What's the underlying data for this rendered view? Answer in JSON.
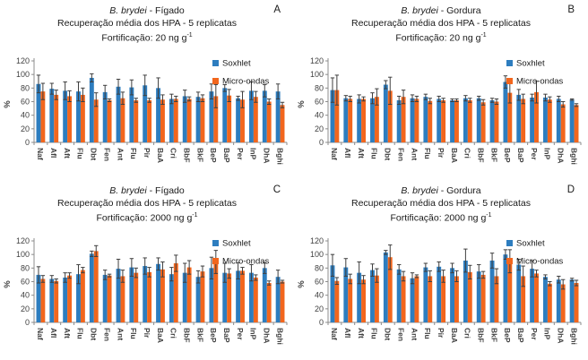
{
  "figure": {
    "colors": {
      "soxhlet": "#2d7dbf",
      "micro_ondas": "#f2661d",
      "error_bar": "#3f3f3f",
      "axis": "#8c8c8c",
      "tick_text": "#404040"
    }
  },
  "chart_data": [
    {
      "type": "bar",
      "panel_letter": "A",
      "title_italic": "B. brydei",
      "title_rest": " - Fígado",
      "subtitle": "Recuperação média dos HPA - 5 replicatas",
      "fortification_text": "Fortificação: 20 ng g",
      "fortification_sup": "-1",
      "ylabel": "%",
      "ylim": [
        0,
        120
      ],
      "yticks": [
        0,
        20,
        40,
        60,
        80,
        100,
        120
      ],
      "grid": false,
      "legend_position": "top-right-inside",
      "categories": [
        "Naf",
        "Afl",
        "Aft",
        "Flu",
        "Dbt",
        "Fen",
        "Ant",
        "Flu",
        "Pir",
        "BaA",
        "Cri",
        "BbF",
        "BkF",
        "BeP",
        "BaP",
        "Per",
        "InP",
        "DhA",
        "Bghi"
      ],
      "series": [
        {
          "name": "Soxhlet",
          "color_key": "soxhlet",
          "values": [
            86,
            79,
            76,
            75,
            95,
            74,
            82,
            81,
            84,
            80,
            64,
            68,
            67,
            75,
            80,
            65,
            76,
            76,
            75
          ],
          "errors": [
            13,
            8,
            13,
            14,
            6,
            10,
            11,
            11,
            15,
            15,
            7,
            9,
            7,
            11,
            5,
            3,
            13,
            9,
            11
          ]
        },
        {
          "name": "Micro-ondas",
          "color_key": "micro_ondas",
          "values": [
            75,
            70,
            68,
            70,
            63,
            62,
            65,
            62,
            62,
            63,
            64,
            64,
            65,
            68,
            69,
            63,
            67,
            60,
            55
          ],
          "errors": [
            12,
            7,
            8,
            10,
            10,
            2,
            9,
            3,
            3,
            7,
            4,
            3,
            5,
            17,
            9,
            12,
            8,
            4,
            4
          ]
        }
      ]
    },
    {
      "type": "bar",
      "panel_letter": "B",
      "title_italic": "B. brydei",
      "title_rest": " - Gordura",
      "subtitle": "Recuperação média dos HPA - 5 replicatas",
      "fortification_text": "Fortificação: 20 ng g",
      "fortification_sup": "-1",
      "ylabel": "%",
      "ylim": [
        0,
        120
      ],
      "yticks": [
        0,
        20,
        40,
        60,
        80,
        100,
        120
      ],
      "grid": false,
      "legend_position": "top-right-inside",
      "categories": [
        "Naf",
        "Afl",
        "Aft",
        "Flu",
        "Dbt",
        "Fen",
        "Ant",
        "Flu",
        "Pir",
        "BaA",
        "Cri",
        "BbF",
        "BkF",
        "BeP",
        "BaP",
        "Per",
        "InP",
        "DhA",
        "Bghi"
      ],
      "series": [
        {
          "name": "Soxhlet",
          "color_key": "soxhlet",
          "values": [
            77,
            65,
            64,
            65,
            85,
            62,
            65,
            67,
            64,
            62,
            65,
            65,
            62,
            89,
            70,
            66,
            66,
            64,
            63
          ],
          "errors": [
            18,
            4,
            6,
            8,
            6,
            6,
            5,
            4,
            4,
            2,
            4,
            3,
            3,
            9,
            8,
            5,
            5,
            4,
            1
          ]
        },
        {
          "name": "Micro-ondas",
          "color_key": "micro_ondas",
          "values": [
            77,
            64,
            64,
            67,
            76,
            67,
            64,
            61,
            62,
            62,
            62,
            59,
            60,
            73,
            64,
            74,
            63,
            56,
            55
          ],
          "errors": [
            22,
            4,
            3,
            12,
            20,
            10,
            4,
            4,
            3,
            2,
            3,
            4,
            4,
            15,
            7,
            16,
            4,
            4,
            2
          ]
        }
      ]
    },
    {
      "type": "bar",
      "panel_letter": "C",
      "title_italic": "B. brydei",
      "title_rest": " - Fígado",
      "subtitle": "Recuperação média dos HPA - 5 replicatas",
      "fortification_text": "Fortificação: 2000 ng g",
      "fortification_sup": "-1",
      "ylabel": "%",
      "ylim": [
        0,
        120
      ],
      "yticks": [
        0,
        20,
        40,
        60,
        80,
        100,
        120
      ],
      "grid": false,
      "legend_position": "top-right-inside",
      "categories": [
        "Naf",
        "Afl",
        "Aft",
        "Flu",
        "Dbt",
        "Fen",
        "Ant",
        "Flu",
        "Pir",
        "BaA",
        "Cri",
        "BbF",
        "BkF",
        "BeP",
        "BaP",
        "Per",
        "InP",
        "DhA",
        "Bghi"
      ],
      "series": [
        {
          "name": "Soxhlet",
          "color_key": "soxhlet",
          "values": [
            70,
            64,
            66,
            71,
            101,
            70,
            79,
            81,
            83,
            86,
            71,
            73,
            67,
            80,
            73,
            76,
            73,
            80,
            67
          ],
          "errors": [
            12,
            5,
            7,
            14,
            4,
            7,
            14,
            13,
            12,
            9,
            10,
            14,
            9,
            16,
            14,
            12,
            12,
            8,
            10
          ]
        },
        {
          "name": "Micro-ondas",
          "color_key": "micro_ondas",
          "values": [
            64,
            61,
            69,
            77,
            105,
            69,
            68,
            73,
            74,
            78,
            87,
            81,
            75,
            89,
            72,
            76,
            66,
            58,
            60
          ],
          "errors": [
            5,
            3,
            4,
            4,
            8,
            2,
            9,
            7,
            7,
            11,
            12,
            10,
            8,
            17,
            7,
            5,
            4,
            3,
            2
          ]
        }
      ]
    },
    {
      "type": "bar",
      "panel_letter": "D",
      "title_italic": "B. brydei",
      "title_rest": " - Gordura",
      "subtitle": "Recuperação média dos HPA - 5 replicatas",
      "fortification_text": "Fortificação: 2000 ng g",
      "fortification_sup": "-1",
      "ylabel": "%",
      "ylim": [
        0,
        120
      ],
      "yticks": [
        0,
        20,
        40,
        60,
        80,
        100,
        120
      ],
      "grid": false,
      "legend_position": "top-right-inside",
      "categories": [
        "Naf",
        "Afl",
        "Aft",
        "Flu",
        "Dbt",
        "Fen",
        "Ant",
        "Flu",
        "Pir",
        "BaA",
        "Cri",
        "BbF",
        "BkF",
        "BeP",
        "BaP",
        "Per",
        "InP",
        "DhA",
        "Bghi"
      ],
      "series": [
        {
          "name": "Soxhlet",
          "color_key": "soxhlet",
          "values": [
            84,
            81,
            73,
            77,
            103,
            78,
            65,
            81,
            82,
            80,
            91,
            75,
            91,
            100,
            85,
            79,
            67,
            63,
            63
          ],
          "errors": [
            16,
            13,
            16,
            9,
            3,
            7,
            8,
            6,
            7,
            7,
            17,
            10,
            11,
            7,
            8,
            12,
            3,
            5,
            2
          ]
        },
        {
          "name": "Micro-ondas",
          "color_key": "micro_ondas",
          "values": [
            61,
            64,
            63,
            69,
            96,
            68,
            68,
            68,
            68,
            68,
            74,
            70,
            68,
            90,
            68,
            72,
            57,
            56,
            58
          ],
          "errors": [
            5,
            7,
            6,
            10,
            18,
            7,
            2,
            8,
            9,
            8,
            10,
            5,
            11,
            17,
            15,
            5,
            3,
            7,
            4
          ]
        }
      ]
    }
  ]
}
